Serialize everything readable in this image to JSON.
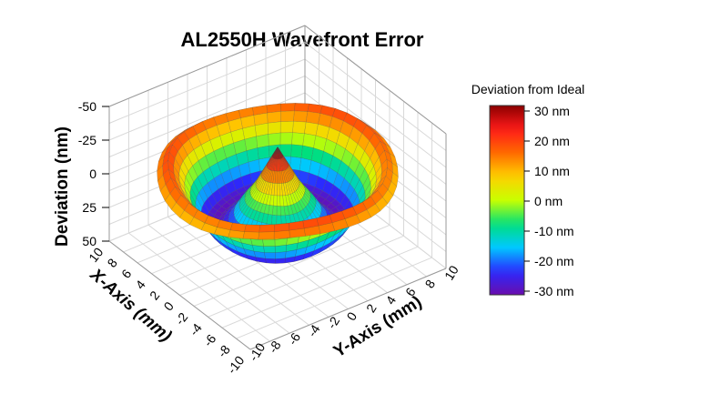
{
  "chart_data": {
    "type": "surface3d",
    "title": "AL2550H Wavefront Error",
    "x_axis": {
      "label": "X-Axis (mm)",
      "ticks": [
        "-10",
        "-8",
        "-6",
        "-4",
        "-2",
        "0",
        "2",
        "4",
        "6",
        "8",
        "10"
      ],
      "range": [
        -10,
        10
      ]
    },
    "y_axis": {
      "label": "Y-Axis (mm)",
      "ticks": [
        "-10",
        "-8",
        "-6",
        "-4",
        "-2",
        "0",
        "2",
        "4",
        "6",
        "8",
        "10"
      ],
      "range": [
        -10,
        10
      ]
    },
    "z_axis": {
      "label": "Deviation (nm)",
      "ticks": [
        "-50",
        "-25",
        "0",
        "25",
        "50"
      ],
      "range": [
        50,
        -50
      ],
      "reversed": true
    },
    "colorbar": {
      "title": "Deviation from Ideal",
      "labels": [
        "30 nm",
        "20 nm",
        "10 nm",
        "0 nm",
        "-10 nm",
        "-20 nm",
        "-30 nm"
      ],
      "values": [
        30,
        20,
        10,
        0,
        -10,
        -20,
        -30
      ],
      "range": [
        -30,
        30
      ],
      "colormap": [
        "#6a0dad",
        "#2a2aff",
        "#00c8ff",
        "#00e07a",
        "#c8ff00",
        "#ffd000",
        "#ff6a00",
        "#ff1a1a",
        "#8b0000"
      ]
    },
    "surface": {
      "description_profile_radius_mm": [
        0,
        1,
        2,
        3,
        4,
        5,
        6,
        7,
        8,
        9,
        10
      ],
      "deviation_nm": [
        -30,
        -15,
        0,
        10,
        22,
        28,
        25,
        10,
        -5,
        -18,
        -10
      ],
      "grid": true,
      "aperture_radius_mm": 10
    }
  }
}
